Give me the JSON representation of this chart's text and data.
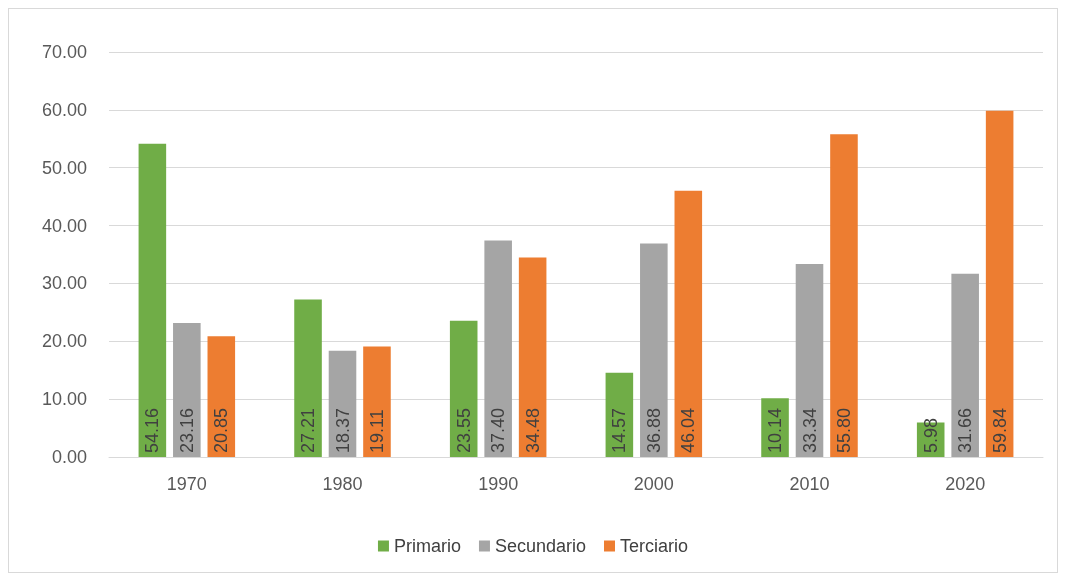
{
  "chart_data": {
    "type": "bar",
    "categories": [
      "1970",
      "1980",
      "1990",
      "2000",
      "2010",
      "2020"
    ],
    "series": [
      {
        "name": "Primario",
        "color": "#70ad47",
        "values": [
          54.16,
          27.21,
          23.55,
          14.57,
          10.14,
          5.98
        ],
        "value_labels": [
          "54.16",
          "27.21",
          "23.55",
          "14.57",
          "10.14",
          "5.98"
        ]
      },
      {
        "name": "Secundario",
        "color": "#a5a5a5",
        "values": [
          23.16,
          18.37,
          37.4,
          36.88,
          33.34,
          31.66
        ],
        "value_labels": [
          "23.16",
          "18.37",
          "37.40",
          "36.88",
          "33.34",
          "31.66"
        ]
      },
      {
        "name": "Terciario",
        "color": "#ed7d31",
        "values": [
          20.85,
          19.11,
          34.48,
          46.04,
          55.8,
          59.84
        ],
        "value_labels": [
          "20.85",
          "19.11",
          "34.48",
          "46.04",
          "55.80",
          "59.84"
        ]
      }
    ],
    "ylim": [
      0,
      70
    ],
    "yticks": [
      {
        "value": 0,
        "label": "0.00"
      },
      {
        "value": 10,
        "label": "10.00"
      },
      {
        "value": 20,
        "label": "20.00"
      },
      {
        "value": 30,
        "label": "30.00"
      },
      {
        "value": 40,
        "label": "40.00"
      },
      {
        "value": 50,
        "label": "50.00"
      },
      {
        "value": 60,
        "label": "60.00"
      },
      {
        "value": 70,
        "label": "70.00"
      }
    ],
    "grid": "y",
    "legend": "bottom"
  }
}
